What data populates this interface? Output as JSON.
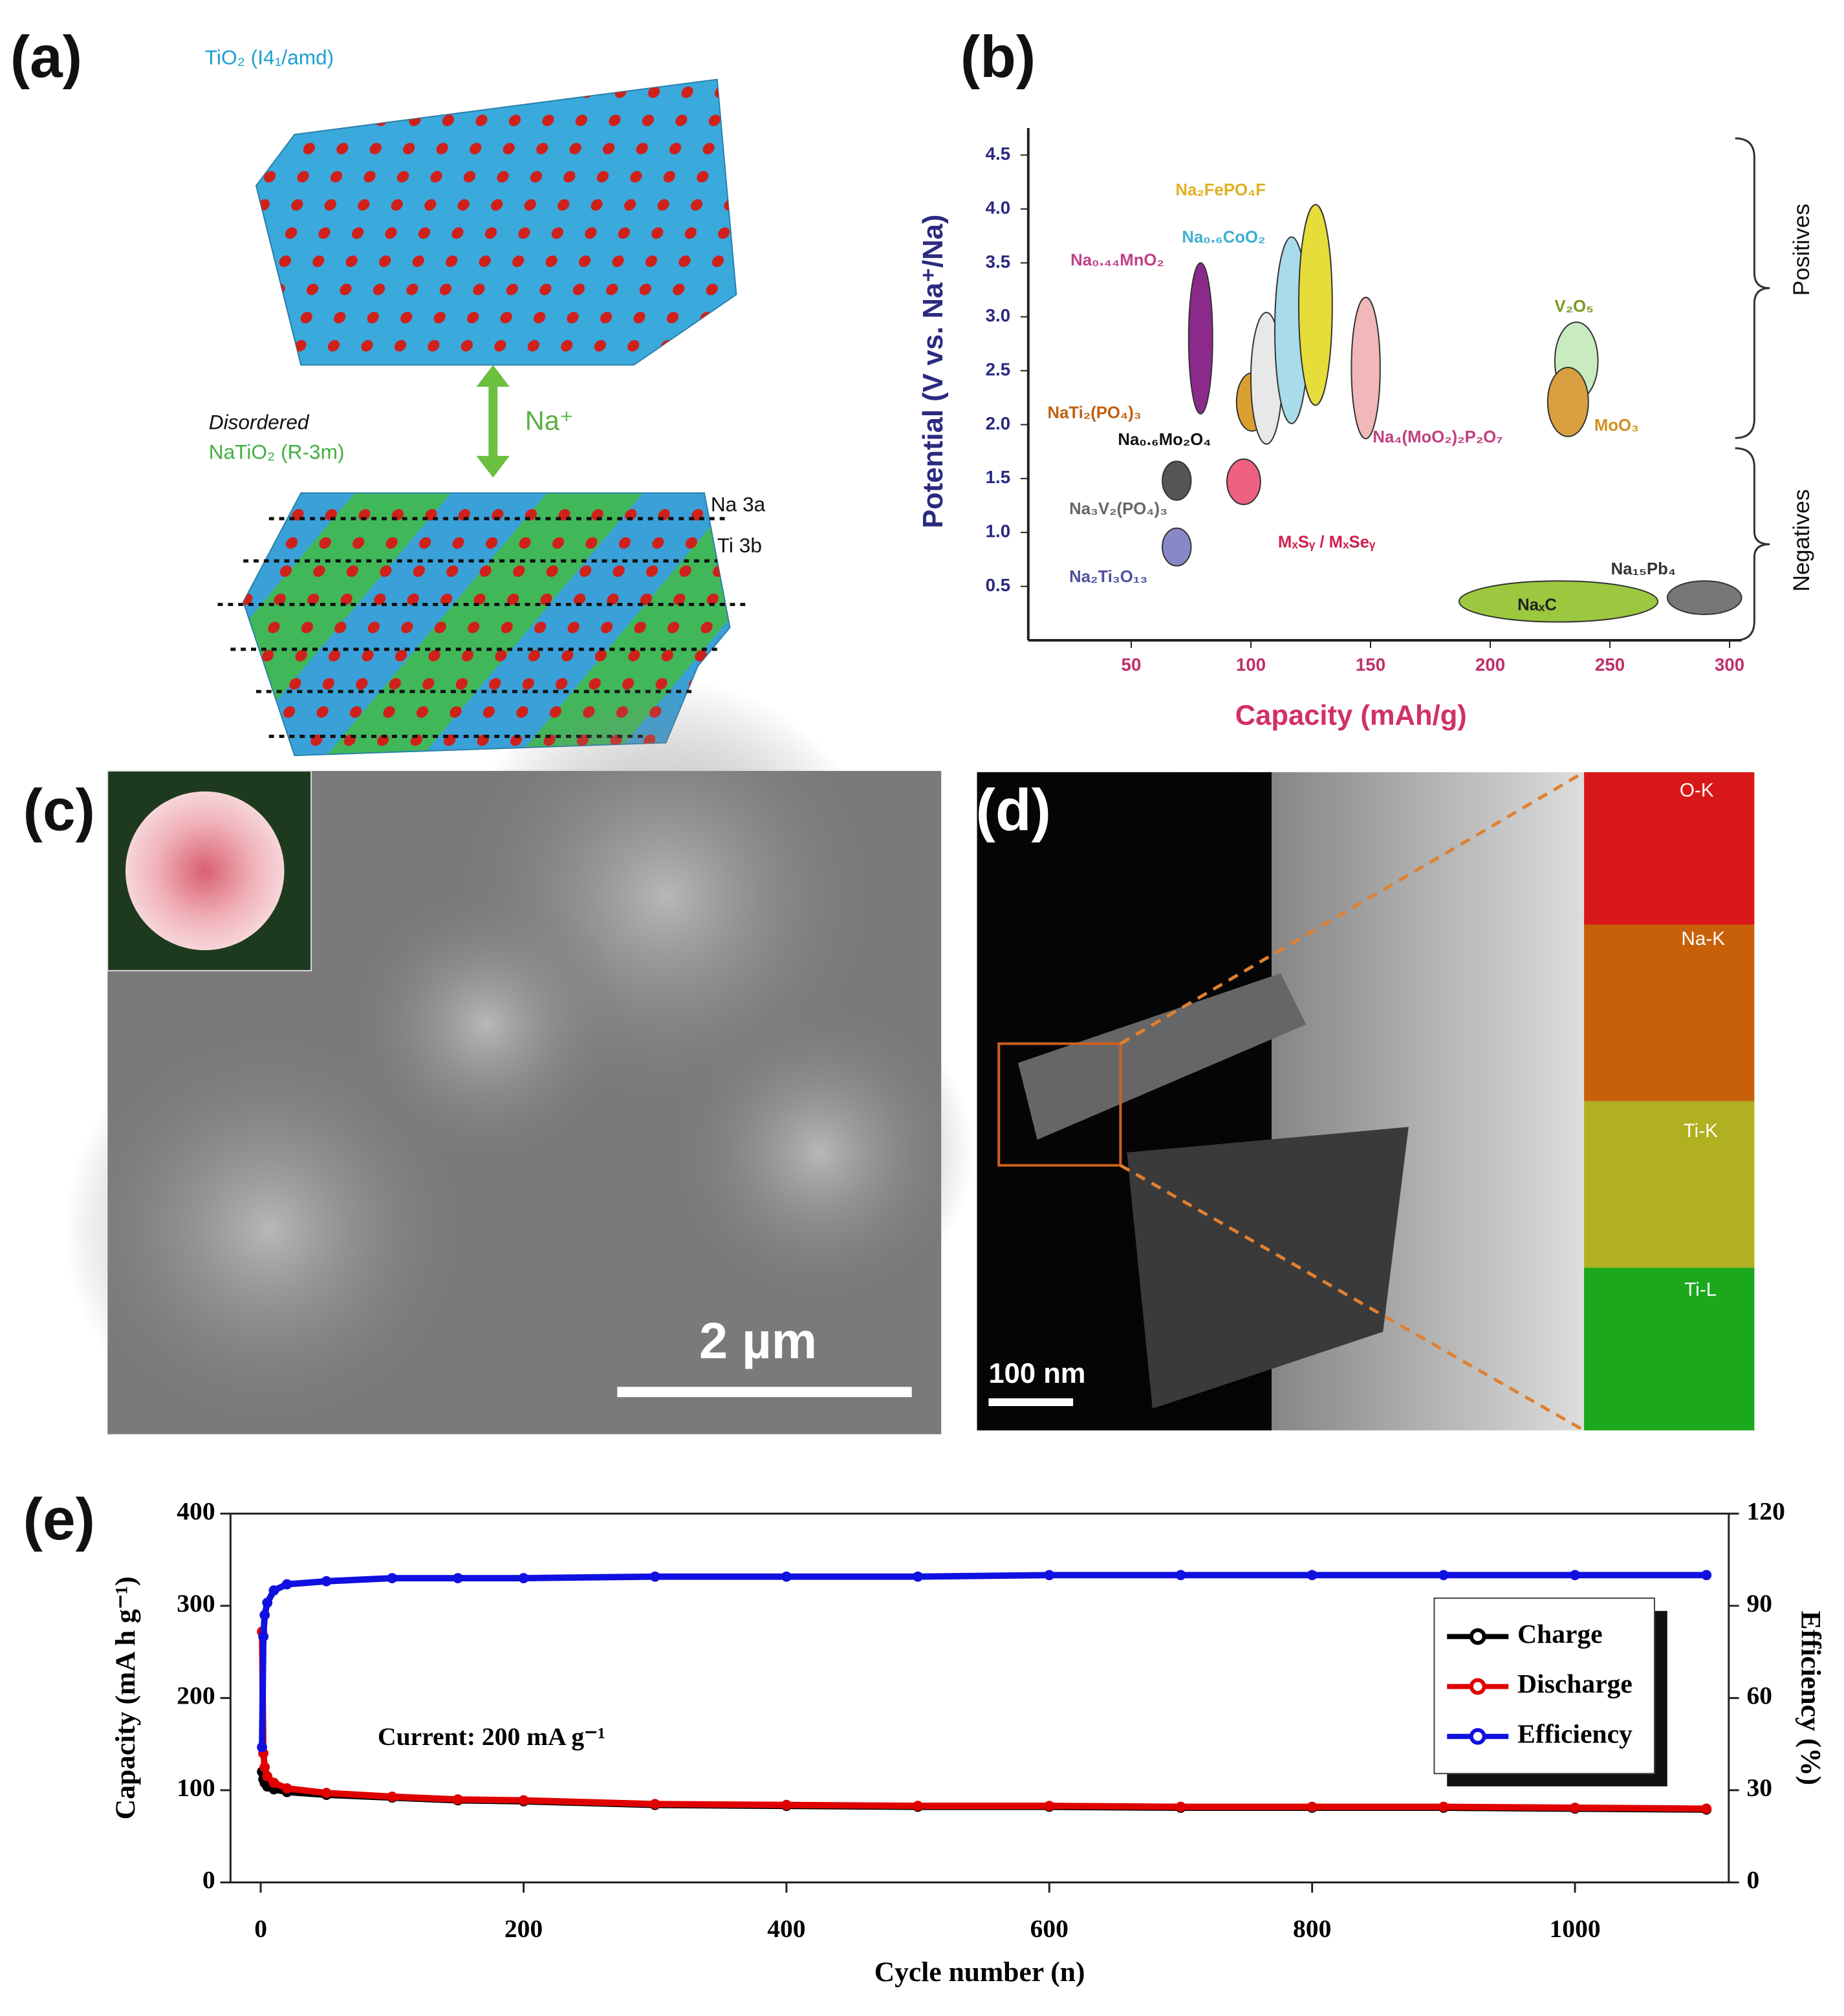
{
  "panel_a": {
    "label": "(a)",
    "top_phase": "TiO₂ (I4₁/amd)",
    "disorder_note": "Disordered",
    "bottom_phase": "NaTiO₂ (R-3m)",
    "ion": "Na⁺",
    "site_na": "Na 3a",
    "site_ti": "Ti 3b"
  },
  "panel_b": {
    "label": "(b)",
    "chart_data": {
      "type": "ellipse",
      "x_label": "Capacity (mAh/g)",
      "y_label": "Potential (V vs. Na⁺/Na)",
      "xlim": [
        7,
        305
      ],
      "xticks": [
        50,
        100,
        150,
        200,
        250,
        300
      ],
      "ylim": [
        0,
        4.75
      ],
      "yticks": [
        0.5,
        {
          "value": 1,
          "label": "1.0"
        },
        1.5,
        {
          "value": 2,
          "label": "2.0"
        },
        2.5,
        {
          "value": 3,
          "label": "3.0"
        },
        3.5,
        {
          "value": 4,
          "label": "4.0"
        },
        4.5
      ],
      "annotations": [
        "Positives",
        "Negatives"
      ],
      "regions": [
        {
          "name": "Na₀.₄₄MnO₂",
          "color": "#8b2a8b",
          "label_color": "#c0408a",
          "x": [
            74,
            84
          ],
          "y": [
            2.1,
            3.5
          ]
        },
        {
          "name": "NaTi₂(PO₄)₃",
          "color": "#d9a030",
          "label_color": "#c06010",
          "x": [
            94,
            107
          ],
          "y": [
            1.94,
            2.48
          ]
        },
        {
          "name": "Na₀.₆Mo₂O₄",
          "color": "#e8e8e8",
          "label_color": "#111111",
          "x": [
            100,
            113
          ],
          "y": [
            1.82,
            3.04
          ]
        },
        {
          "name": "Na₀.₆CoO₂",
          "color": "#a8dcea",
          "label_color": "#40b0d0",
          "x": [
            110,
            124
          ],
          "y": [
            2.01,
            3.74
          ]
        },
        {
          "name": "Na₂FePO₄F",
          "color": "#e6dc3a",
          "label_color": "#e0b020",
          "x": [
            120,
            134
          ],
          "y": [
            2.18,
            4.04
          ]
        },
        {
          "name": "Na₄(MoO₂)₂P₂O₇",
          "color": "#f0b8b8",
          "label_color": "#c04080",
          "x": [
            142,
            154
          ],
          "y": [
            1.87,
            3.18
          ]
        },
        {
          "name": "V₂O₅",
          "color": "#c8ecc0",
          "label_color": "#7a9a20",
          "x": [
            227,
            245
          ],
          "y": [
            2.23,
            2.95
          ]
        },
        {
          "name": "MoO₃",
          "color": "#d8a040",
          "label_color": "#d09020",
          "x": [
            224,
            241
          ],
          "y": [
            1.89,
            2.53
          ]
        },
        {
          "name": "Na₃V₂(PO₄)₃",
          "color": "#555555",
          "label_color": "#666666",
          "x": [
            63,
            75
          ],
          "y": [
            1.3,
            1.66
          ]
        },
        {
          "name": "MₓSᵧ / MₓSeᵧ",
          "color": "#f06080",
          "label_color": "#d02050",
          "x": [
            90,
            104
          ],
          "y": [
            1.26,
            1.68
          ]
        },
        {
          "name": "Na₂Ti₃O₁₃",
          "color": "#8888c8",
          "label_color": "#5050a0",
          "x": [
            63,
            75
          ],
          "y": [
            0.69,
            1.04
          ]
        },
        {
          "name": "NaₓC",
          "color": "#9cc840",
          "label_color": "#222222",
          "x": [
            187,
            270
          ],
          "y": [
            0.17,
            0.55
          ]
        },
        {
          "name": "Na₁₅Pb₄",
          "color": "#777777",
          "label_color": "#333333",
          "x": [
            274,
            305
          ],
          "y": [
            0.24,
            0.55
          ]
        }
      ]
    }
  },
  "panel_c": {
    "label": "(c)",
    "scale_bar": "2 µm"
  },
  "panel_d": {
    "label": "(d)",
    "maps": [
      "O-K",
      "Na-K",
      "Ti-K",
      "Ti-L"
    ],
    "scale_bar": "100 nm"
  },
  "panel_e": {
    "label": "(e)",
    "chart_data": {
      "type": "line",
      "x_label": "Cycle number (n)",
      "y_label": "Capacity (mA h g⁻¹)",
      "y2_label": "Efficiency (%)",
      "annotation": "Current: 200 mA g⁻¹",
      "legend": "upper right",
      "xlim": [
        -23,
        1117
      ],
      "xticks": [
        0,
        200,
        400,
        600,
        800,
        1000
      ],
      "ylim": [
        0,
        400
      ],
      "yticks": [
        0,
        100,
        200,
        300,
        400
      ],
      "y2lim": [
        0,
        120
      ],
      "y2ticks": [
        0,
        30,
        60,
        90,
        120
      ],
      "x": [
        1,
        2,
        3,
        5,
        10,
        20,
        50,
        100,
        150,
        200,
        300,
        400,
        500,
        600,
        700,
        800,
        900,
        1000,
        1100
      ],
      "series": [
        {
          "name": "Charge",
          "color": "#000000",
          "values": [
            120,
            112,
            108,
            104,
            101,
            98,
            95,
            92,
            89,
            88,
            84,
            83,
            82,
            82,
            81,
            81,
            81,
            80,
            79
          ]
        },
        {
          "name": "Discharge",
          "color": "#e00000",
          "values": [
            272,
            140,
            125,
            115,
            108,
            102,
            97,
            93,
            90,
            89,
            85,
            84,
            83,
            83,
            82,
            82,
            82,
            81,
            80
          ]
        },
        {
          "name": "Efficiency",
          "color": "#1010e0",
          "axis": "y2",
          "values": [
            44,
            80,
            87,
            91,
            95,
            97,
            98,
            99,
            99,
            99,
            99.5,
            99.5,
            99.5,
            100,
            100,
            100,
            100,
            100,
            100
          ]
        }
      ]
    }
  }
}
